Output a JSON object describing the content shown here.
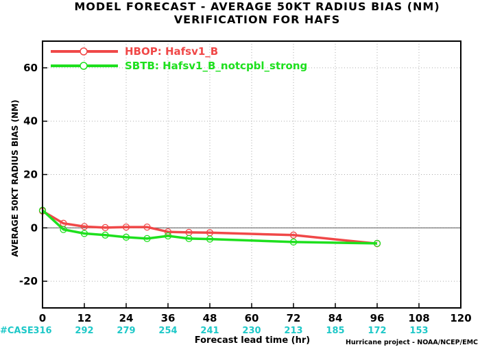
{
  "chart_data": {
    "type": "line",
    "title": "MODEL FORECAST - AVERAGE 50KT RADIUS BIAS (NM)",
    "subtitle": "VERIFICATION FOR HAFS",
    "xlabel": "Forecast lead time (hr)",
    "ylabel": "AVERAGE 50KT RADIUS BIAS (NM)",
    "xlim": [
      0,
      120
    ],
    "ylim": [
      -30,
      70
    ],
    "xticks": [
      0,
      12,
      24,
      36,
      48,
      60,
      72,
      84,
      96,
      108,
      120
    ],
    "yticks": [
      -20,
      0,
      20,
      40,
      60
    ],
    "grid": true,
    "legend_position": "top-left",
    "series": [
      {
        "name": "HBOP: Hafsv1_B",
        "color": "#f04848",
        "x": [
          0,
          6,
          12,
          18,
          24,
          30,
          36,
          42,
          48,
          72,
          96
        ],
        "y": [
          6.3,
          1.7,
          0.5,
          0.1,
          0.3,
          0.3,
          -1.5,
          -1.7,
          -1.8,
          -2.7,
          -5.9
        ]
      },
      {
        "name": "SBTB: Hafsv1_B_notcpbl_strong",
        "color": "#1ee01e",
        "x": [
          0,
          6,
          12,
          18,
          24,
          30,
          36,
          42,
          48,
          72,
          96
        ],
        "y": [
          6.6,
          -0.6,
          -2.1,
          -2.7,
          -3.5,
          -4.0,
          -3.0,
          -4.0,
          -4.2,
          -5.3,
          -5.8
        ]
      }
    ],
    "case_label": "#CASE",
    "case_color": "#1ec8c8",
    "case_counts": [
      {
        "x": 0,
        "n": "316"
      },
      {
        "x": 12,
        "n": "292"
      },
      {
        "x": 24,
        "n": "279"
      },
      {
        "x": 36,
        "n": "254"
      },
      {
        "x": 48,
        "n": "241"
      },
      {
        "x": 60,
        "n": "230"
      },
      {
        "x": 72,
        "n": "213"
      },
      {
        "x": 84,
        "n": "185"
      },
      {
        "x": 96,
        "n": "172"
      },
      {
        "x": 108,
        "n": "153"
      }
    ],
    "credit": "Hurricane project - NOAA/NCEP/EMC"
  }
}
